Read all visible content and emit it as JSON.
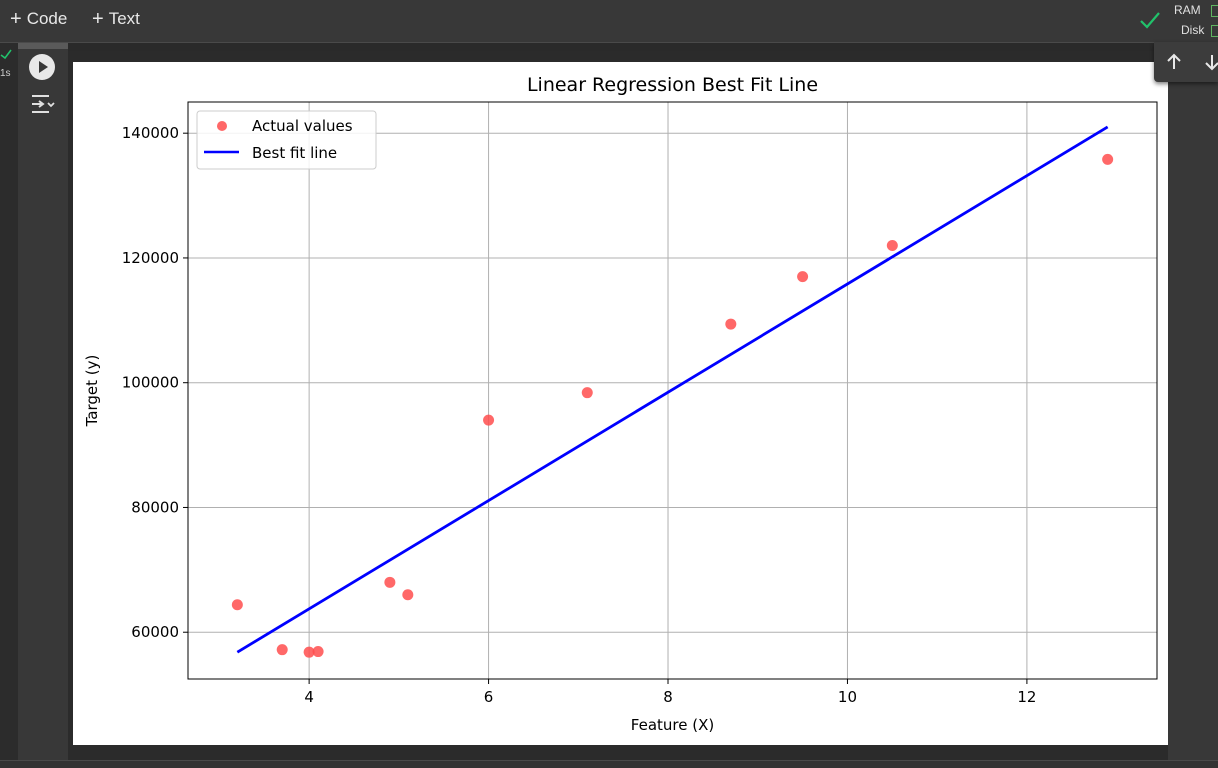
{
  "toolbar": {
    "add_code_label": "Code",
    "add_text_label": "Text",
    "ram_label": "RAM",
    "disk_label": "Disk"
  },
  "cell": {
    "exec_label": "1s"
  },
  "colors": {
    "scatter": "#ff4d4d",
    "line": "#0000ff",
    "check": "#21c26b",
    "grid": "#b0b0b0"
  },
  "chart_data": {
    "type": "scatter",
    "title": "Linear Regression Best Fit Line",
    "xlabel": "Feature (X)",
    "ylabel": "Target (y)",
    "xlim": [
      2.65,
      13.45
    ],
    "ylim": [
      52500,
      145000
    ],
    "xticks": [
      4,
      6,
      8,
      10,
      12
    ],
    "yticks": [
      60000,
      80000,
      100000,
      120000,
      140000
    ],
    "grid": true,
    "legend_position": "upper-left",
    "series": [
      {
        "name": "Actual values",
        "kind": "scatter",
        "x": [
          3.2,
          3.7,
          4.0,
          4.1,
          4.9,
          5.1,
          6.0,
          7.1,
          8.7,
          9.5,
          10.5,
          12.9
        ],
        "y": [
          64400,
          57200,
          56800,
          56900,
          68000,
          66000,
          94000,
          98400,
          109400,
          117000,
          122000,
          135800
        ]
      },
      {
        "name": "Best fit line",
        "kind": "line",
        "x": [
          3.2,
          12.9
        ],
        "y": [
          56800,
          141000
        ]
      }
    ]
  }
}
